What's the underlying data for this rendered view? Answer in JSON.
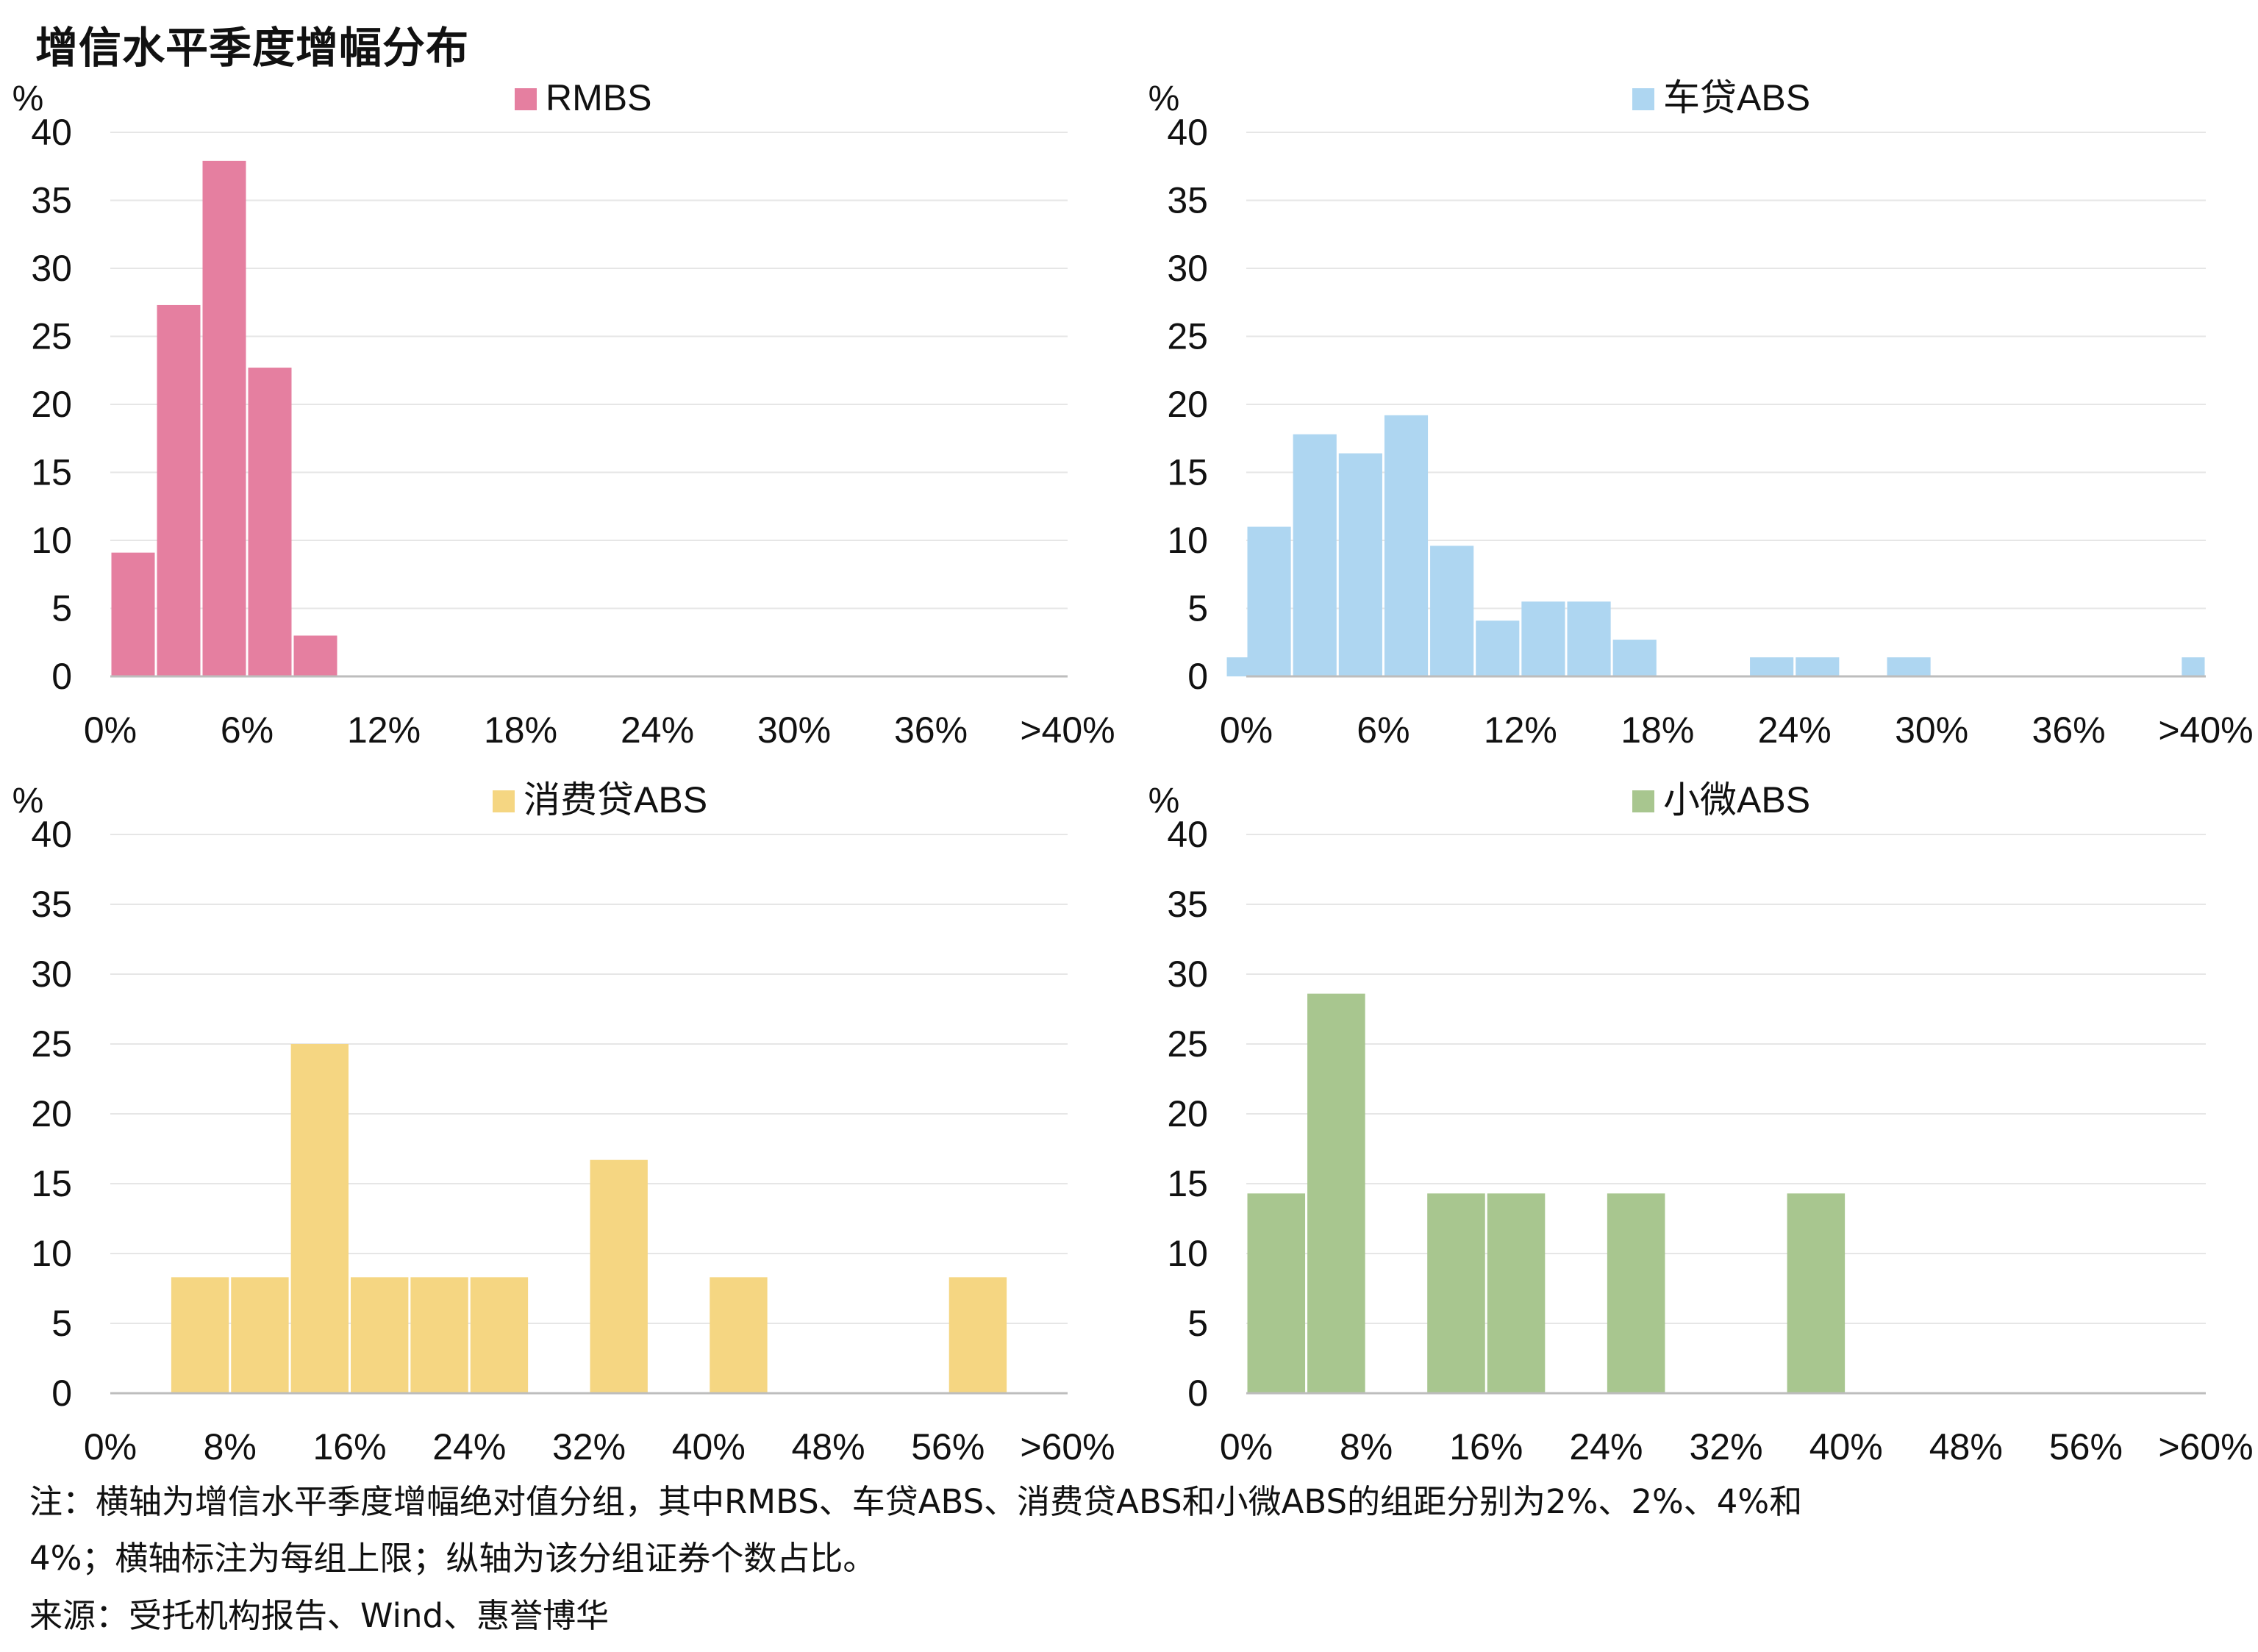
{
  "title": "增信水平季度增幅分布",
  "chart_data": [
    {
      "type": "bar",
      "series_name": "RMBS",
      "color": "#E57FA0",
      "ylabel": "%",
      "ylim": [
        0,
        40
      ],
      "yticks": [
        "0",
        "5",
        "10",
        "15",
        "20",
        "25",
        "30",
        "35",
        "40"
      ],
      "xticks": [
        "0%",
        "6%",
        "12%",
        "18%",
        "24%",
        "30%",
        "36%",
        ">40%"
      ],
      "bin_width": 2,
      "bins": [
        "2%",
        "4%",
        "6%",
        "8%",
        "10%"
      ],
      "values": [
        9.1,
        27.3,
        37.9,
        22.7,
        3.0
      ]
    },
    {
      "type": "bar",
      "series_name": "车贷ABS",
      "color": "#AED6F1",
      "ylabel": "%",
      "ylim": [
        0,
        40
      ],
      "yticks": [
        "0",
        "5",
        "10",
        "15",
        "20",
        "25",
        "30",
        "35",
        "40"
      ],
      "xticks": [
        "0%",
        "6%",
        "12%",
        "18%",
        "24%",
        "30%",
        "36%",
        ">40%"
      ],
      "bin_width": 2,
      "bins": [
        "0%",
        "2%",
        "4%",
        "6%",
        "8%",
        "10%",
        "12%",
        "14%",
        "16%",
        "18%",
        "24%",
        "26%",
        "30%",
        ">40%"
      ],
      "values": [
        1.4,
        11.0,
        17.8,
        16.4,
        19.2,
        9.6,
        4.1,
        5.5,
        5.5,
        2.7,
        1.4,
        1.4,
        1.4,
        1.4
      ]
    },
    {
      "type": "bar",
      "series_name": "消费贷ABS",
      "color": "#F5D682",
      "ylabel": "%",
      "ylim": [
        0,
        40
      ],
      "yticks": [
        "0",
        "5",
        "10",
        "15",
        "20",
        "25",
        "30",
        "35",
        "40"
      ],
      "xticks": [
        "0%",
        "8%",
        "16%",
        "24%",
        "32%",
        "40%",
        "48%",
        "56%",
        ">60%"
      ],
      "bin_width": 4,
      "bins": [
        "8%",
        "12%",
        "16%",
        "20%",
        "24%",
        "28%",
        "36%",
        "44%",
        "60%"
      ],
      "values": [
        8.3,
        8.3,
        25.0,
        8.3,
        8.3,
        8.3,
        16.7,
        8.3,
        8.3
      ]
    },
    {
      "type": "bar",
      "series_name": "小微ABS",
      "color": "#A8C68F",
      "ylabel": "%",
      "ylim": [
        0,
        40
      ],
      "yticks": [
        "0",
        "5",
        "10",
        "15",
        "20",
        "25",
        "30",
        "35",
        "40"
      ],
      "xticks": [
        "0%",
        "8%",
        "16%",
        "24%",
        "32%",
        "40%",
        "48%",
        "56%",
        ">60%"
      ],
      "bin_width": 4,
      "bins": [
        "4%",
        "8%",
        "16%",
        "20%",
        "28%",
        "40%"
      ],
      "values": [
        14.3,
        28.6,
        14.3,
        14.3,
        14.3,
        14.3
      ]
    }
  ],
  "notes": {
    "line1": "注：横轴为增信水平季度增幅绝对值分组，其中RMBS、车贷ABS、消费贷ABS和小微ABS的组距分别为2%、2%、4%和",
    "line2": "4%；横轴标注为每组上限；纵轴为该分组证券个数占比。",
    "source": "来源：受托机构报告、Wind、惠誉博华"
  }
}
